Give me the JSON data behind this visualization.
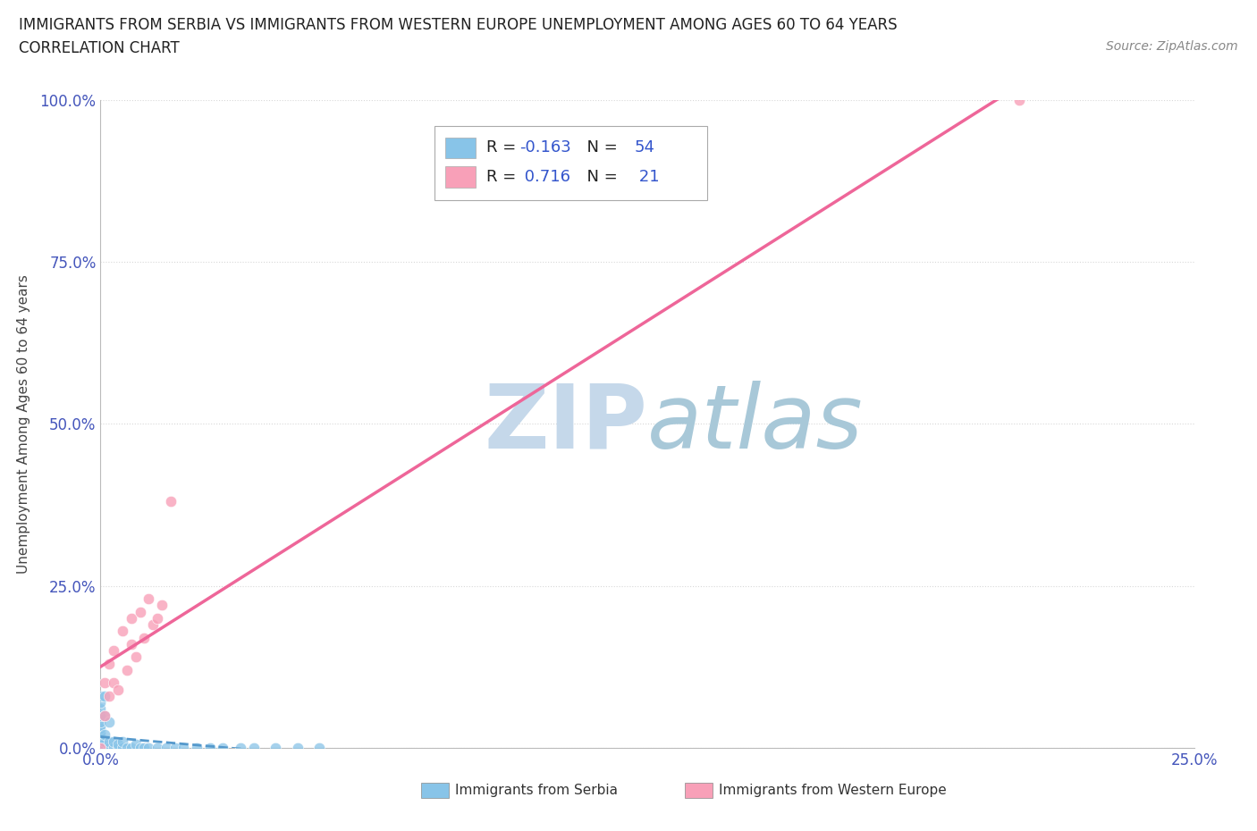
{
  "title_line1": "IMMIGRANTS FROM SERBIA VS IMMIGRANTS FROM WESTERN EUROPE UNEMPLOYMENT AMONG AGES 60 TO 64 YEARS",
  "title_line2": "CORRELATION CHART",
  "source_text": "Source: ZipAtlas.com",
  "xlabel_bottom": "Immigrants from Serbia",
  "ylabel": "Unemployment Among Ages 60 to 64 years",
  "xlim": [
    0.0,
    0.25
  ],
  "ylim": [
    0.0,
    1.0
  ],
  "serbia_R": -0.163,
  "serbia_N": 54,
  "weurope_R": 0.716,
  "weurope_N": 21,
  "serbia_color": "#88c4e8",
  "weurope_color": "#f8a0b8",
  "serbia_trend_color": "#5599cc",
  "weurope_trend_color": "#ee6699",
  "watermark_color": "#ccdded",
  "background_color": "#ffffff",
  "grid_color": "#d8d8d8",
  "serbia_x": [
    0.0,
    0.0,
    0.0,
    0.0,
    0.0,
    0.0,
    0.0,
    0.0,
    0.0,
    0.0,
    0.0,
    0.0,
    0.0,
    0.0,
    0.0,
    0.0,
    0.0,
    0.0,
    0.0,
    0.0,
    0.0,
    0.0,
    0.001,
    0.001,
    0.001,
    0.001,
    0.001,
    0.002,
    0.002,
    0.002,
    0.003,
    0.003,
    0.004,
    0.004,
    0.005,
    0.005,
    0.006,
    0.007,
    0.008,
    0.009,
    0.01,
    0.011,
    0.013,
    0.015,
    0.017,
    0.019,
    0.022,
    0.025,
    0.028,
    0.032,
    0.035,
    0.04,
    0.045,
    0.05
  ],
  "serbia_y": [
    0.0,
    0.0,
    0.0,
    0.0,
    0.0,
    0.0,
    0.0,
    0.0,
    0.0,
    0.0,
    0.005,
    0.01,
    0.015,
    0.02,
    0.025,
    0.03,
    0.035,
    0.04,
    0.05,
    0.06,
    0.07,
    0.08,
    0.0,
    0.01,
    0.02,
    0.05,
    0.08,
    0.0,
    0.01,
    0.04,
    0.0,
    0.01,
    0.0,
    0.005,
    0.0,
    0.01,
    0.0,
    0.0,
    0.005,
    0.0,
    0.0,
    0.0,
    0.0,
    0.0,
    0.0,
    0.0,
    0.0,
    0.0,
    0.0,
    0.0,
    0.0,
    0.0,
    0.0,
    0.0
  ],
  "weurope_x": [
    0.0,
    0.001,
    0.001,
    0.002,
    0.002,
    0.003,
    0.003,
    0.004,
    0.005,
    0.006,
    0.007,
    0.007,
    0.008,
    0.009,
    0.01,
    0.011,
    0.012,
    0.013,
    0.014,
    0.016,
    0.21
  ],
  "weurope_y": [
    0.0,
    0.05,
    0.1,
    0.08,
    0.13,
    0.1,
    0.15,
    0.09,
    0.18,
    0.12,
    0.16,
    0.2,
    0.14,
    0.21,
    0.17,
    0.23,
    0.19,
    0.2,
    0.22,
    0.38,
    1.0
  ],
  "legend_serbia_label": "R = -0.163   N = 54",
  "legend_we_label": "R =  0.716   N =  21",
  "bottom_serbia_label": "Immigrants from Serbia",
  "bottom_we_label": "Immigrants from Western Europe"
}
